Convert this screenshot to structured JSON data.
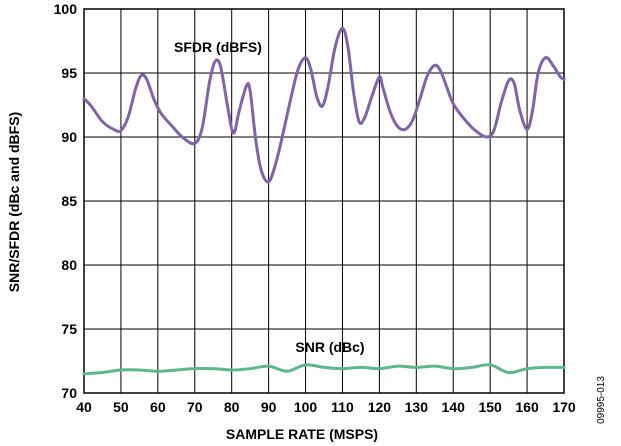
{
  "chart_data": {
    "type": "line",
    "title": "",
    "xlabel": "SAMPLE RATE (MSPS)",
    "ylabel": "SNR/SFDR (dBc and dBFS)",
    "xlim": [
      40,
      170
    ],
    "ylim": [
      70,
      100
    ],
    "xticks": [
      40,
      50,
      60,
      70,
      80,
      90,
      100,
      110,
      120,
      130,
      140,
      150,
      160,
      170
    ],
    "yticks": [
      70,
      75,
      80,
      85,
      90,
      95,
      100
    ],
    "grid": true,
    "figure_id": "09995-013",
    "colors": {
      "sfdr": "#8064a8",
      "snr": "#5fb58c",
      "grid": "#000000"
    },
    "series": [
      {
        "name": "SFDR (dBFS)",
        "label": "SFDR (dBFS)",
        "color": "#8064a8",
        "x": [
          40,
          42,
          45,
          48,
          50,
          52,
          54,
          55.5,
          57,
          59,
          61,
          64,
          67,
          70,
          72,
          74,
          75.5,
          77,
          79,
          80.5,
          82,
          84,
          85,
          86.5,
          88,
          90,
          92,
          94,
          96,
          98,
          100,
          101.5,
          103,
          104.5,
          106,
          108,
          110,
          111.5,
          113,
          114.5,
          116,
          118,
          120,
          121,
          123,
          125,
          127,
          129,
          131,
          133,
          135,
          136.5,
          138,
          140,
          143,
          146,
          149,
          151,
          153,
          155,
          156.5,
          158,
          160,
          161.5,
          163,
          165,
          167,
          169,
          170
        ],
        "y": [
          93.0,
          92.4,
          91.2,
          90.6,
          90.5,
          91.6,
          93.8,
          94.8,
          94.5,
          92.9,
          91.8,
          90.8,
          89.9,
          89.5,
          90.7,
          94.3,
          95.9,
          95.5,
          92.2,
          90.3,
          92.0,
          94.0,
          93.6,
          89.8,
          87.4,
          86.5,
          88.0,
          90.4,
          93.0,
          95.3,
          96.2,
          95.2,
          93.2,
          92.4,
          93.8,
          97.0,
          98.5,
          97.0,
          93.5,
          91.2,
          91.5,
          93.2,
          94.7,
          93.8,
          91.9,
          90.8,
          90.6,
          91.3,
          93.0,
          94.8,
          95.6,
          95.2,
          94.1,
          92.6,
          91.4,
          90.5,
          90.0,
          90.5,
          92.7,
          94.4,
          94.2,
          92.1,
          90.6,
          92.1,
          95.0,
          96.2,
          95.6,
          94.7,
          94.5
        ]
      },
      {
        "name": "SNR (dBc)",
        "label": "SNR (dBc)",
        "color": "#5fb58c",
        "x": [
          40,
          45,
          50,
          55,
          60,
          65,
          70,
          75,
          80,
          85,
          90,
          95,
          100,
          105,
          110,
          115,
          120,
          125,
          130,
          135,
          140,
          145,
          150,
          155,
          160,
          165,
          170
        ],
        "y": [
          71.5,
          71.6,
          71.8,
          71.8,
          71.7,
          71.8,
          71.9,
          71.9,
          71.8,
          71.9,
          72.1,
          71.7,
          72.2,
          72.0,
          71.9,
          72.0,
          71.9,
          72.1,
          72.0,
          72.1,
          71.9,
          72.0,
          72.2,
          71.6,
          71.9,
          72.0,
          72.0
        ]
      }
    ]
  }
}
